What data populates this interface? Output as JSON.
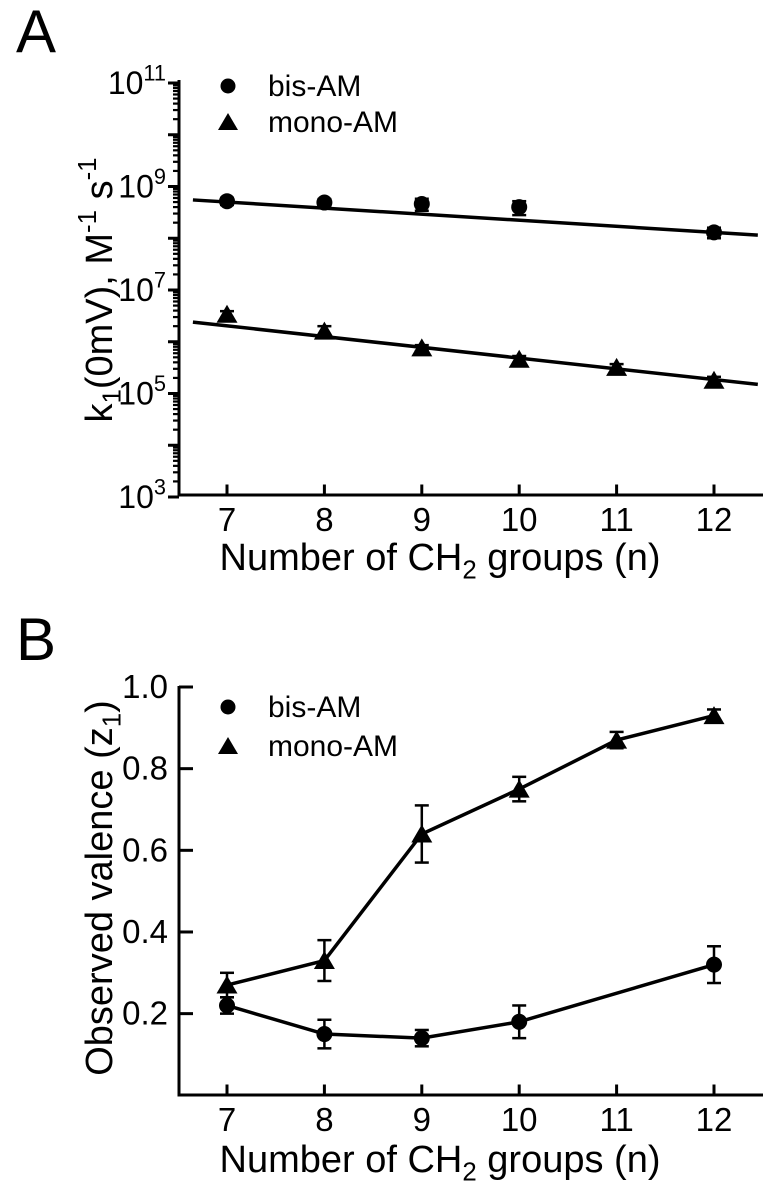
{
  "figure": {
    "background": "#ffffff",
    "ink": "#000000"
  },
  "chart_data": [
    {
      "panel": "A",
      "type": "scatter",
      "xlabel": "Number of CH_{2} groups (n)",
      "ylabel": "k_{1}(0mV), M^{-1} s^{-1}",
      "xscale": "linear",
      "yscale": "log",
      "xlim": [
        6.5,
        12.5
      ],
      "ylim": [
        1000.0,
        100000000000.0
      ],
      "xticks": [
        7,
        8,
        9,
        10,
        11,
        12
      ],
      "ytick_labels": [
        "10^{3}",
        "10^{5}",
        "10^{7}",
        "10^{9}",
        "10^{11}"
      ],
      "ytick_values": [
        1000.0,
        100000.0,
        10000000.0,
        1000000000.0,
        100000000000.0
      ],
      "y_decade_ticks": [
        3,
        4,
        5,
        6,
        7,
        8,
        9,
        10,
        11
      ],
      "minor_log_ticks": true,
      "grid": false,
      "legend": {
        "position": "top-left-inside",
        "entries": [
          {
            "label": "bis-AM",
            "marker": "circle"
          },
          {
            "label": "mono-AM",
            "marker": "triangle"
          }
        ]
      },
      "series": [
        {
          "name": "bis-AM",
          "marker": "circle",
          "connect": false,
          "x": [
            7,
            8,
            9,
            10,
            12
          ],
          "y": [
            520000000.0,
            490000000.0,
            460000000.0,
            400000000.0,
            130000000.0
          ],
          "yerr": [
            80000000.0,
            80000000.0,
            120000000.0,
            120000000.0,
            30000000.0
          ]
        },
        {
          "name": "mono-AM",
          "marker": "triangle",
          "connect": false,
          "x": [
            7,
            8,
            9,
            10,
            11,
            12
          ],
          "y": [
            3400000.0,
            1600000.0,
            760000.0,
            460000.0,
            320000.0,
            180000.0
          ],
          "yerr": [
            500000.0,
            400000.0,
            100000.0,
            70000.0,
            50000.0,
            30000.0
          ]
        }
      ],
      "fit_lines": [
        {
          "series": "bis-AM",
          "x": [
            6.65,
            12.45
          ],
          "y": [
            550000000.0,
            115000000.0
          ]
        },
        {
          "series": "mono-AM",
          "x": [
            6.65,
            12.45
          ],
          "y": [
            2400000.0,
            150000.0
          ]
        }
      ]
    },
    {
      "panel": "B",
      "type": "scatter-line",
      "xlabel": "Number of CH_{2} groups (n)",
      "ylabel": "Observed valence (z_{1})",
      "xscale": "linear",
      "yscale": "linear",
      "xlim": [
        6.5,
        12.5
      ],
      "ylim": [
        0,
        1.0
      ],
      "xticks": [
        7,
        8,
        9,
        10,
        11,
        12
      ],
      "ytick_labels": [
        "0.2",
        "0.4",
        "0.6",
        "0.8",
        "1.0"
      ],
      "ytick_values": [
        0.2,
        0.4,
        0.6,
        0.8,
        1.0
      ],
      "minor_log_ticks": false,
      "grid": false,
      "legend": {
        "position": "top-left-inside",
        "entries": [
          {
            "label": "bis-AM",
            "marker": "circle"
          },
          {
            "label": "mono-AM",
            "marker": "triangle"
          }
        ]
      },
      "series": [
        {
          "name": "bis-AM",
          "marker": "circle",
          "connect": true,
          "x": [
            7,
            8,
            9,
            10,
            12
          ],
          "y": [
            0.22,
            0.15,
            0.14,
            0.18,
            0.32
          ],
          "yerr": [
            0.02,
            0.035,
            0.02,
            0.04,
            0.045
          ]
        },
        {
          "name": "mono-AM",
          "marker": "triangle",
          "connect": true,
          "x": [
            7,
            8,
            9,
            10,
            11,
            12
          ],
          "y": [
            0.27,
            0.33,
            0.64,
            0.75,
            0.87,
            0.93
          ],
          "yerr": [
            0.03,
            0.05,
            0.07,
            0.03,
            0.02,
            0.015
          ]
        }
      ],
      "fit_lines": []
    }
  ]
}
